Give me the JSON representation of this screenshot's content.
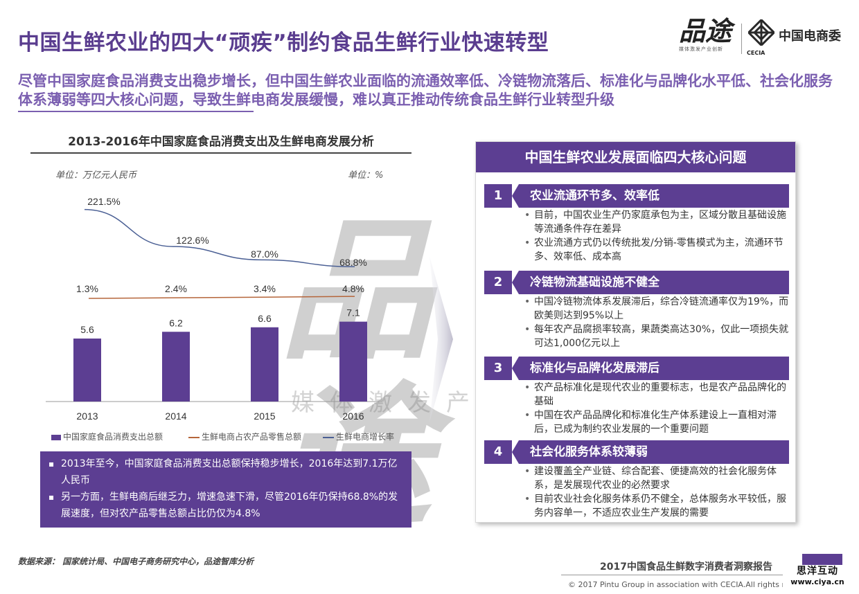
{
  "header": {
    "title": "中国生鲜农业的四大“顽疾”制约食品生鲜行业快速转型",
    "brand_logo_text": "品途",
    "brand_tagline": "媒体激发产业创新",
    "cecia_mark_text": "CECIA",
    "cecia_name": "中国电商委"
  },
  "subtitle": "尽管中国家庭食品消费支出稳步增长，但中国生鲜农业面临的流通效率低、冷链物流落后、标准化与品牌化水平低、社会化服务体系薄弱等四大核心问题，导致生鲜电商发展缓慢，难以真正推动传统食品生鲜行业转型升级",
  "chart_data": {
    "type": "bar",
    "title": "2013-2016年中国家庭食品消费支出及生鲜电商发展分析",
    "unit_left": "单位：万亿元人民币",
    "unit_right": "单位：%",
    "categories": [
      "2013",
      "2014",
      "2015",
      "2016"
    ],
    "series": [
      {
        "name": "中国家庭食品消费支出总额",
        "kind": "bar",
        "values": [
          5.6,
          6.2,
          6.6,
          7.1
        ],
        "labels": [
          "5.6",
          "6.2",
          "6.6",
          "7.1"
        ],
        "color": "#5c3e92"
      },
      {
        "name": "生鲜电商占农产品零售总额",
        "kind": "line",
        "values": [
          1.3,
          2.4,
          3.4,
          4.8
        ],
        "labels": [
          "1.3%",
          "2.4%",
          "3.4%",
          "4.8%"
        ],
        "color": "#b5653a"
      },
      {
        "name": "生鲜电商增长率",
        "kind": "line",
        "values": [
          221.5,
          122.6,
          87.0,
          68.8
        ],
        "labels": [
          "221.5%",
          "122.6%",
          "87.0%",
          "68.8%"
        ],
        "color": "#4a5f94"
      }
    ],
    "legend_position": "bottom",
    "grid": false
  },
  "notes": [
    "2013年至今，中国家庭食品消费支出总额保持稳步增长，2016年达到7.1万亿人民币",
    "另一方面，生鲜电商后继乏力，增速急速下滑，尽管2016年仍保持68.8%的发展速度，但对农产品零售总额占比仍仅为4.8%"
  ],
  "panel": {
    "title": "中国生鲜农业发展面临四大核心问题",
    "issues": [
      {
        "num": "1",
        "title": "农业流通环节多、效率低",
        "points": [
          "目前，中国农业生产仍家庭承包为主，区域分散且基础设施等流通条件存在差异",
          "农业流通方式仍以传统批发/分销-零售模式为主，流通环节多、效率低、成本高"
        ]
      },
      {
        "num": "2",
        "title": "冷链物流基础设施不健全",
        "points": [
          "中国冷链物流体系发展滞后，综合冷链流通率仅为19%，而欧美则达到95%以上",
          "每年农产品腐损率较高，果蔬类高达30%，仅此一项损失就可达1,000亿元以上"
        ]
      },
      {
        "num": "3",
        "title": "标准化与品牌化发展滞后",
        "points": [
          "农产品标准化是现代农业的重要标志，也是农产品品牌化的基础",
          "中国在农产品品牌化和标准化生产体系建设上一直相对滞后，已成为制约农业发展的一个重要问题"
        ]
      },
      {
        "num": "4",
        "title": "社会化服务体系较薄弱",
        "points": [
          "建设覆盖全产业链、综合配套、便捷高效的社会化服务体系，是发展现代农业的必然要求",
          "目前农业社会化服务体系仍不健全，总体服务水平较低，服务内容单一，不适应农业生产发展的需要"
        ]
      }
    ]
  },
  "footer": {
    "source": "数据来源：  国家统计局、中国电子商务研究中心，品途智库分析",
    "report_title": "2017中国食品生鲜数字消费者洞察报告",
    "copyright": "© 2017 Pintu Group in association with CECIA.All rights res",
    "corner_mark_line1": "思洋互动",
    "corner_mark_line2": "www.ciya.cn"
  },
  "watermark": {
    "glyph": "品途",
    "text": "媒体激发产业"
  }
}
